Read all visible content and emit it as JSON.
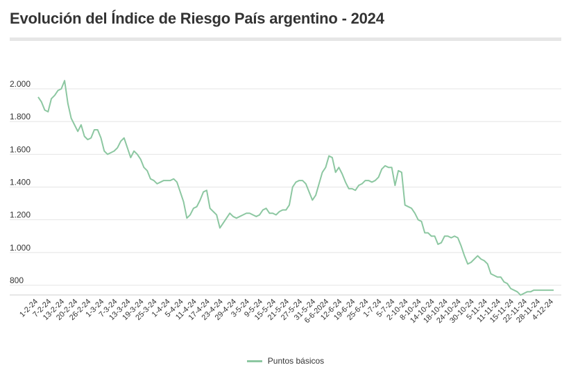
{
  "chart_data": {
    "type": "line",
    "title": "Evolución del Índice de Riesgo País argentino - 2024",
    "xlabel": "",
    "ylabel": "",
    "ylim": [
      700,
      2100
    ],
    "yticks": [
      800,
      1000,
      1200,
      1400,
      1600,
      1800,
      2000
    ],
    "ytick_labels": [
      "800",
      "1.000",
      "1.200",
      "1.400",
      "1.600",
      "1.800",
      "2.000"
    ],
    "xtick_labels": [
      "1-2-24",
      "7-2-24",
      "13-2-24",
      "20-2-24",
      "26-2-24",
      "1-3-24",
      "7-3-24",
      "13-3-24",
      "19-3-24",
      "25-3-24",
      "1-4-24",
      "5-4-24",
      "11-4-24",
      "17-4-24",
      "23-4-24",
      "29-4-24",
      "3-5-24",
      "9-5-24",
      "15-5-24",
      "21-5-24",
      "27-5-24",
      "31-5-24",
      "6-6-2024",
      "12-6-24",
      "19-6-24",
      "25-6-24",
      "1-7-24",
      "5-7-24",
      "2-10-24",
      "8-10-24",
      "14-10-24",
      "18-10-24",
      "24-10-24",
      "30-10-24",
      "5-11-24",
      "11-11-24",
      "15-11-24",
      "22-11-24",
      "28-11-24",
      "4-12-24"
    ],
    "grid": true,
    "legend_position": "bottom",
    "series": [
      {
        "name": "Puntos básicos",
        "color": "#8cc7a1",
        "values": [
          1950,
          1920,
          1870,
          1860,
          1940,
          1960,
          1990,
          2000,
          2050,
          1910,
          1820,
          1780,
          1740,
          1780,
          1710,
          1690,
          1700,
          1750,
          1750,
          1700,
          1620,
          1600,
          1610,
          1620,
          1640,
          1680,
          1700,
          1640,
          1580,
          1620,
          1600,
          1570,
          1520,
          1500,
          1450,
          1440,
          1420,
          1430,
          1440,
          1440,
          1440,
          1450,
          1430,
          1370,
          1310,
          1210,
          1230,
          1270,
          1280,
          1320,
          1370,
          1380,
          1270,
          1250,
          1230,
          1150,
          1180,
          1210,
          1240,
          1220,
          1210,
          1220,
          1230,
          1240,
          1240,
          1230,
          1220,
          1230,
          1260,
          1270,
          1240,
          1240,
          1230,
          1250,
          1260,
          1260,
          1290,
          1400,
          1430,
          1440,
          1440,
          1420,
          1370,
          1320,
          1350,
          1420,
          1490,
          1520,
          1590,
          1580,
          1490,
          1520,
          1480,
          1430,
          1390,
          1390,
          1380,
          1410,
          1420,
          1440,
          1440,
          1430,
          1440,
          1460,
          1510,
          1530,
          1520,
          1520,
          1410,
          1500,
          1490,
          1290,
          1280,
          1270,
          1240,
          1200,
          1190,
          1120,
          1120,
          1100,
          1100,
          1050,
          1060,
          1100,
          1100,
          1090,
          1100,
          1090,
          1040,
          980,
          930,
          940,
          960,
          980,
          960,
          950,
          930,
          870,
          860,
          850,
          850,
          820,
          810,
          780,
          770,
          760,
          740,
          750,
          760,
          760,
          770,
          770,
          770,
          770,
          770,
          770,
          770
        ]
      }
    ]
  },
  "legend": {
    "label": "Puntos básicos"
  }
}
